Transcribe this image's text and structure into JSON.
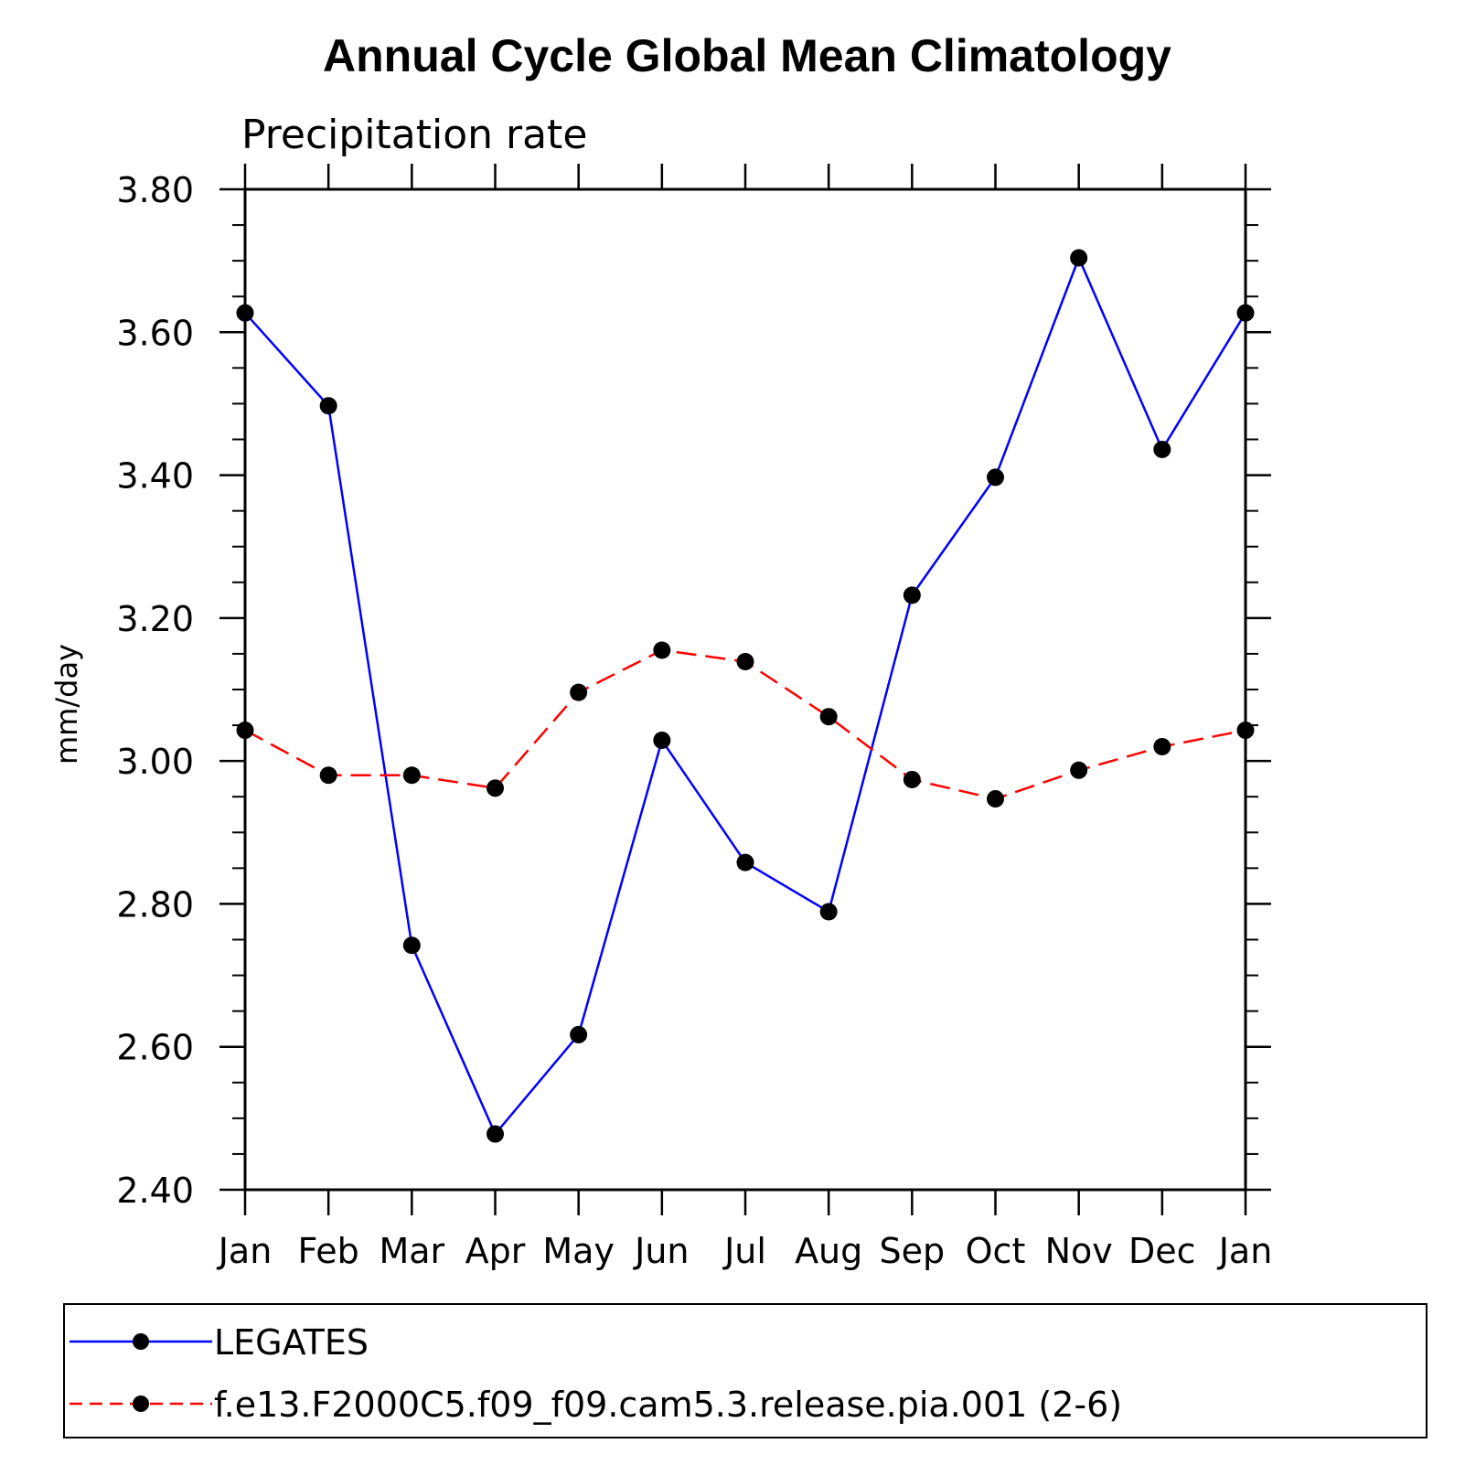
{
  "chart_data": {
    "type": "line",
    "title": "Annual Cycle Global Mean Climatology",
    "subtitle": "Precipitation rate",
    "xlabel": "",
    "ylabel": "mm/day",
    "categories": [
      "Jan",
      "Feb",
      "Mar",
      "Apr",
      "May",
      "Jun",
      "Jul",
      "Aug",
      "Sep",
      "Oct",
      "Nov",
      "Dec",
      "Jan"
    ],
    "ylim": [
      2.4,
      3.8
    ],
    "yticks": [
      "2.40",
      "2.60",
      "2.80",
      "3.00",
      "3.20",
      "3.40",
      "3.60",
      "3.80"
    ],
    "y_minor_step": 0.05,
    "series": [
      {
        "name": "LEGATES",
        "color": "#0000ff",
        "dash": "solid",
        "marker": "circle",
        "values": [
          3.627,
          3.497,
          2.742,
          2.478,
          2.617,
          3.029,
          2.858,
          2.789,
          3.232,
          3.397,
          3.704,
          3.436,
          3.627
        ]
      },
      {
        "name": "f.e13.F2000C5.f09_f09.cam5.3.release.pia.001 (2-6)",
        "color": "#ff0000",
        "dash": "dashed",
        "marker": "circle",
        "values": [
          3.043,
          2.98,
          2.98,
          2.962,
          3.096,
          3.155,
          3.139,
          3.062,
          2.974,
          2.947,
          2.987,
          3.02,
          3.043
        ]
      }
    ],
    "legend": "bottom",
    "grid": false
  }
}
